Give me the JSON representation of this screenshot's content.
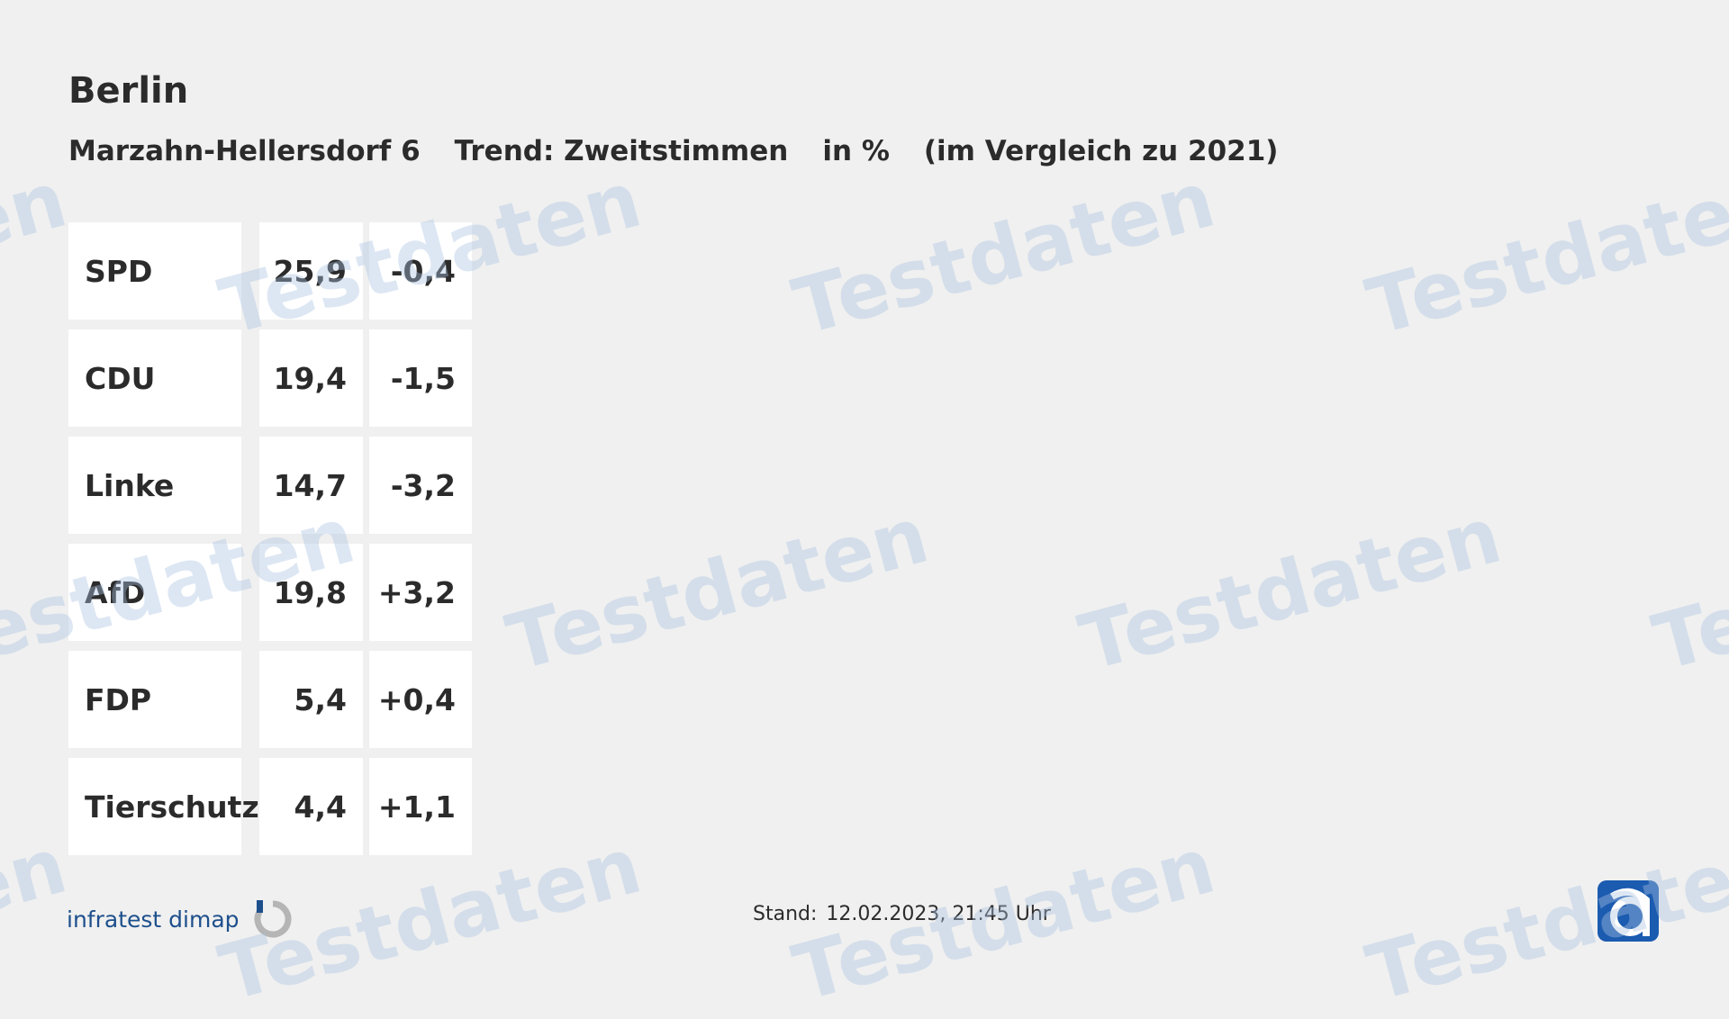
{
  "header": {
    "region": "Berlin",
    "constituency": "Marzahn-Hellersdorf 6",
    "trend": "Trend: Zweitstimmen",
    "unit": "in %",
    "comparison": "(im Vergleich zu 2021)"
  },
  "table": {
    "rows": [
      [
        "SPD",
        "25,9",
        "-0,4"
      ],
      [
        "CDU",
        "19,4",
        "-1,5"
      ],
      [
        "Linke",
        "14,7",
        "-3,2"
      ],
      [
        "AfD",
        "19,8",
        "+3,2"
      ],
      [
        "FDP",
        "5,4",
        "+0,4"
      ],
      [
        "Tierschutz",
        "4,4",
        "+1,1"
      ]
    ]
  },
  "footer": {
    "logo_text": "infratest dimap",
    "stand_label": "Stand:",
    "stand_value": "12.02.2023, 21:45 Uhr"
  },
  "watermark": "Testdaten"
}
